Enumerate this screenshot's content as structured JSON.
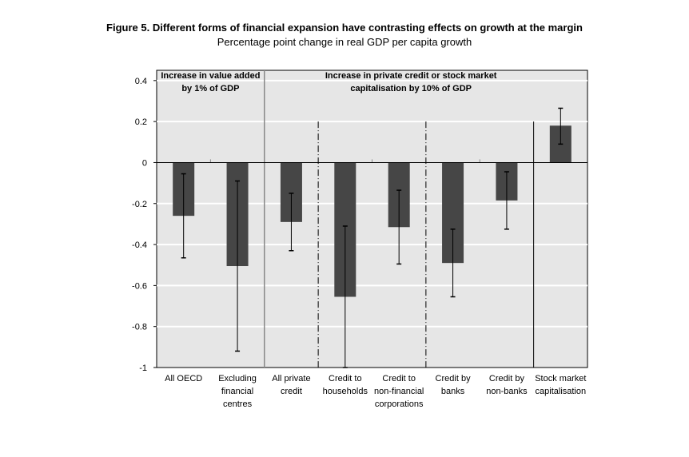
{
  "title": "Figure 5. Different forms of financial expansion have contrasting effects on growth at the margin",
  "subtitle": "Percentage point change in real GDP per capita growth",
  "chart_data": {
    "type": "bar",
    "title": "Figure 5. Different forms of financial expansion have contrasting effects on growth at the margin",
    "ylabel": "Percentage point change in real GDP per capita growth",
    "ylim": [
      -1,
      0.4
    ],
    "yticks": [
      0.4,
      0.2,
      0,
      -0.2,
      -0.4,
      -0.6,
      -0.8,
      -1
    ],
    "ytick_labels": [
      "0.4",
      "0.2",
      "0",
      "-0.2",
      "-0.4",
      "-0.6",
      "-0.8",
      "-1"
    ],
    "grid": true,
    "categories": [
      "All OECD",
      "Excluding financial centres",
      "All private credit",
      "Credit to households",
      "Credit to non-financial corporations",
      "Credit by banks",
      "Credit by non-banks",
      "Stock market capitalisation"
    ],
    "category_lines": [
      [
        "All OECD"
      ],
      [
        "Excluding",
        "financial",
        "centres"
      ],
      [
        "All private",
        "credit"
      ],
      [
        "Credit to",
        "households"
      ],
      [
        "Credit to",
        "non-financial",
        "corporations"
      ],
      [
        "Credit by",
        "banks"
      ],
      [
        "Credit by",
        "non-banks"
      ],
      [
        "Stock market",
        "capitalisation"
      ]
    ],
    "values": [
      -0.26,
      -0.505,
      -0.29,
      -0.655,
      -0.315,
      -0.49,
      -0.185,
      0.18
    ],
    "error_low": [
      -0.465,
      -0.92,
      -0.43,
      -1.0,
      -0.495,
      -0.655,
      -0.325,
      0.09
    ],
    "error_high": [
      -0.055,
      -0.09,
      -0.15,
      -0.31,
      -0.135,
      -0.325,
      -0.045,
      0.265
    ],
    "annotations": [
      {
        "lines": [
          "Increase in value added",
          "by 1% of GDP"
        ]
      },
      {
        "lines": [
          "Increase in private credit or stock market",
          "capitalisation by 10% of GDP"
        ]
      }
    ],
    "colors": {
      "bar": "#464646",
      "background": "#e6e6e6",
      "grid": "#ffffff"
    }
  }
}
